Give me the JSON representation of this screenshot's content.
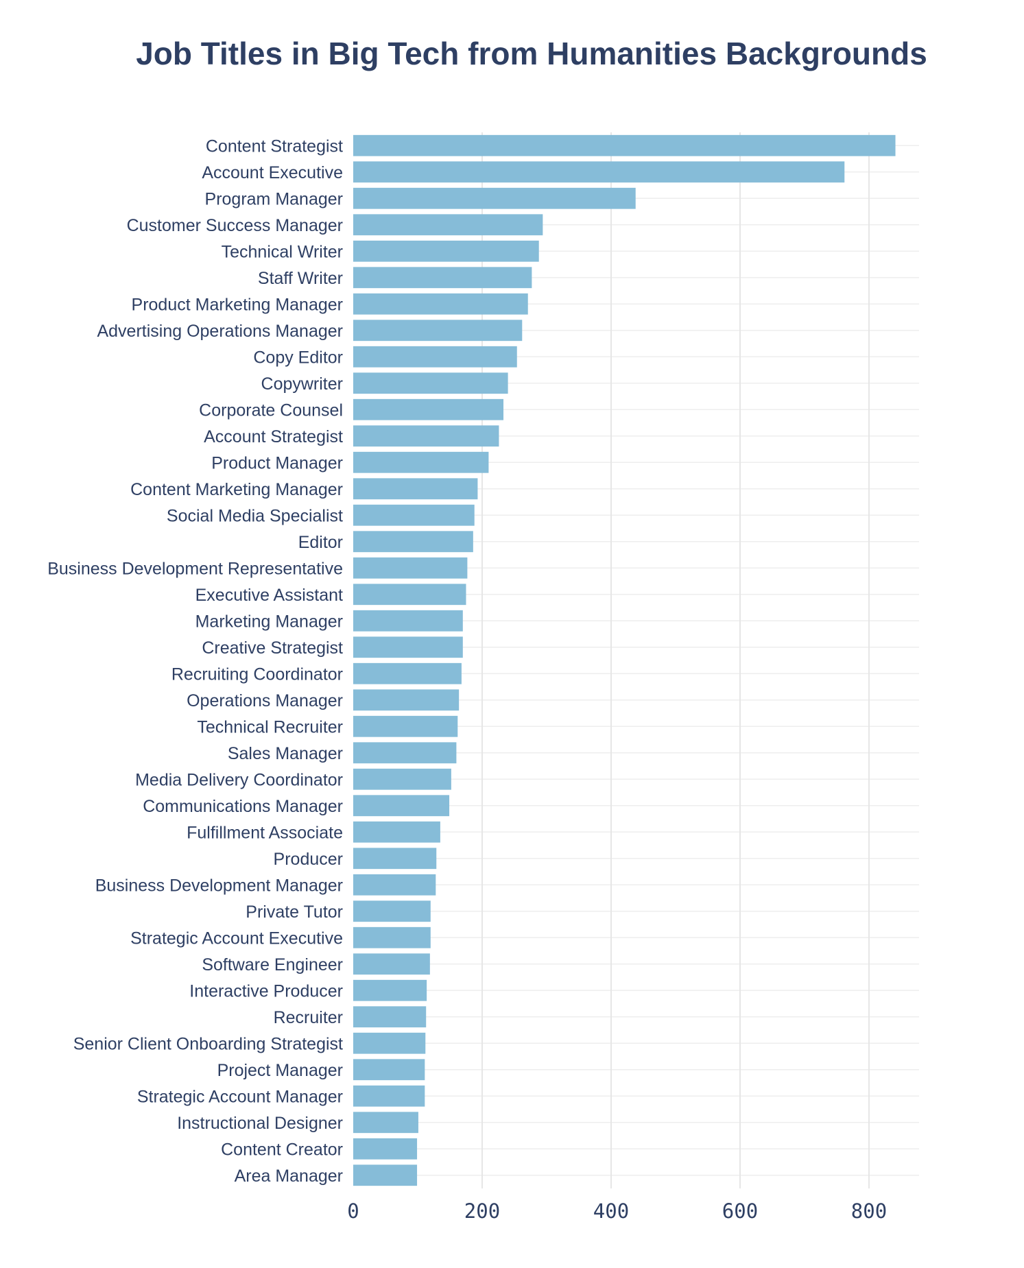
{
  "chart_data": {
    "type": "bar",
    "orientation": "horizontal",
    "title": "Job Titles in Big Tech from Humanities Backgrounds",
    "xlabel": "",
    "ylabel": "",
    "xlim": [
      0,
      885
    ],
    "xticks": [
      0,
      200,
      400,
      600,
      800
    ],
    "grid": true,
    "bar_color": "#86bcd8",
    "text_color": "#2e3f63",
    "categories": [
      "Content Strategist",
      "Account Executive",
      "Program Manager",
      "Customer Success Manager",
      "Technical Writer",
      "Staff Writer",
      "Product Marketing Manager",
      "Advertising Operations Manager",
      "Copy Editor",
      "Copywriter",
      "Corporate Counsel",
      "Account Strategist",
      "Product Manager",
      "Content Marketing Manager",
      "Social Media Specialist",
      "Editor",
      "Business Development Representative",
      "Executive Assistant",
      "Marketing Manager",
      "Creative Strategist",
      "Recruiting Coordinator",
      "Operations Manager",
      "Technical Recruiter",
      "Sales Manager",
      "Media Delivery Coordinator",
      "Communications Manager",
      "Fulfillment Associate",
      "Producer",
      "Business Development Manager",
      "Private Tutor",
      "Strategic Account Executive",
      "Software Engineer",
      "Interactive Producer",
      "Recruiter",
      "Senior Client Onboarding Strategist",
      "Project Manager",
      "Strategic Account Manager",
      "Instructional Designer",
      "Content Creator",
      "Area Manager"
    ],
    "values": [
      841,
      762,
      438,
      294,
      288,
      277,
      271,
      262,
      254,
      240,
      233,
      226,
      210,
      193,
      188,
      186,
      177,
      175,
      170,
      170,
      168,
      164,
      162,
      160,
      152,
      149,
      135,
      129,
      128,
      120,
      120,
      119,
      114,
      113,
      112,
      111,
      111,
      101,
      99,
      99
    ]
  }
}
